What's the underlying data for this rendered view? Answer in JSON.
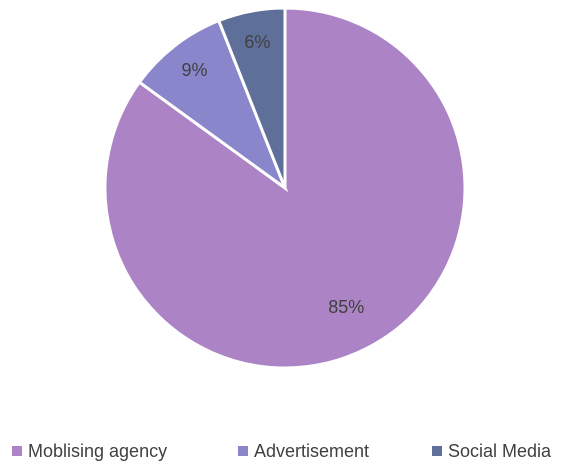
{
  "chart_data": {
    "type": "pie",
    "categories": [
      "Moblising agency",
      "Advertisement",
      "Social Media"
    ],
    "values": [
      85,
      9,
      6
    ],
    "value_labels": [
      "85%",
      "9%",
      "6%"
    ],
    "colors": [
      "#ac84c6",
      "#8a86cc",
      "#5e7099"
    ],
    "legend": "bottom"
  }
}
